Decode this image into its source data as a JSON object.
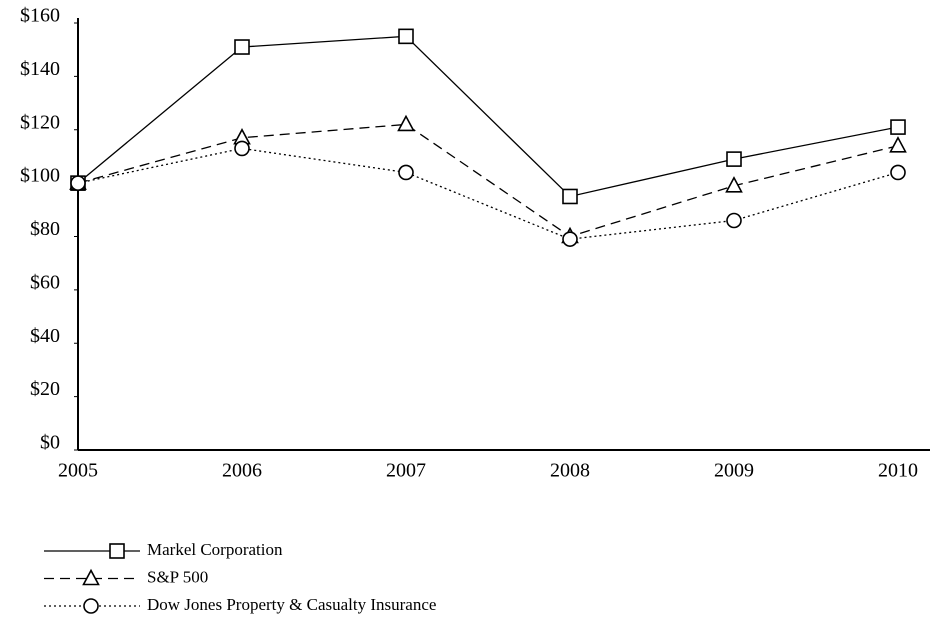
{
  "chart_data": {
    "type": "line",
    "categories": [
      "2005",
      "2006",
      "2007",
      "2008",
      "2009",
      "2010"
    ],
    "ylim": [
      0,
      160
    ],
    "yticks": [
      {
        "value": 0,
        "label": "$0"
      },
      {
        "value": 20,
        "label": "$20"
      },
      {
        "value": 40,
        "label": "$40"
      },
      {
        "value": 60,
        "label": "$60"
      },
      {
        "value": 80,
        "label": "$80"
      },
      {
        "value": 100,
        "label": "$100"
      },
      {
        "value": 120,
        "label": "$120"
      },
      {
        "value": 140,
        "label": "$140"
      },
      {
        "value": 160,
        "label": "$160"
      }
    ],
    "grid": false,
    "legend": "bottom",
    "series": [
      {
        "name": "Markel Corporation",
        "color": "#000000",
        "marker": "square",
        "line_style": "solid",
        "values": [
          100,
          151,
          155,
          95,
          109,
          121
        ]
      },
      {
        "name": "S&P 500",
        "color": "#000000",
        "marker": "triangle",
        "line_style": "dashed",
        "values": [
          100,
          117,
          122,
          80,
          99,
          114
        ]
      },
      {
        "name": "Dow Jones Property & Casualty Insurance",
        "color": "#000000",
        "marker": "circle",
        "line_style": "dotted",
        "values": [
          100,
          113,
          104,
          79,
          86,
          104
        ]
      }
    ]
  }
}
